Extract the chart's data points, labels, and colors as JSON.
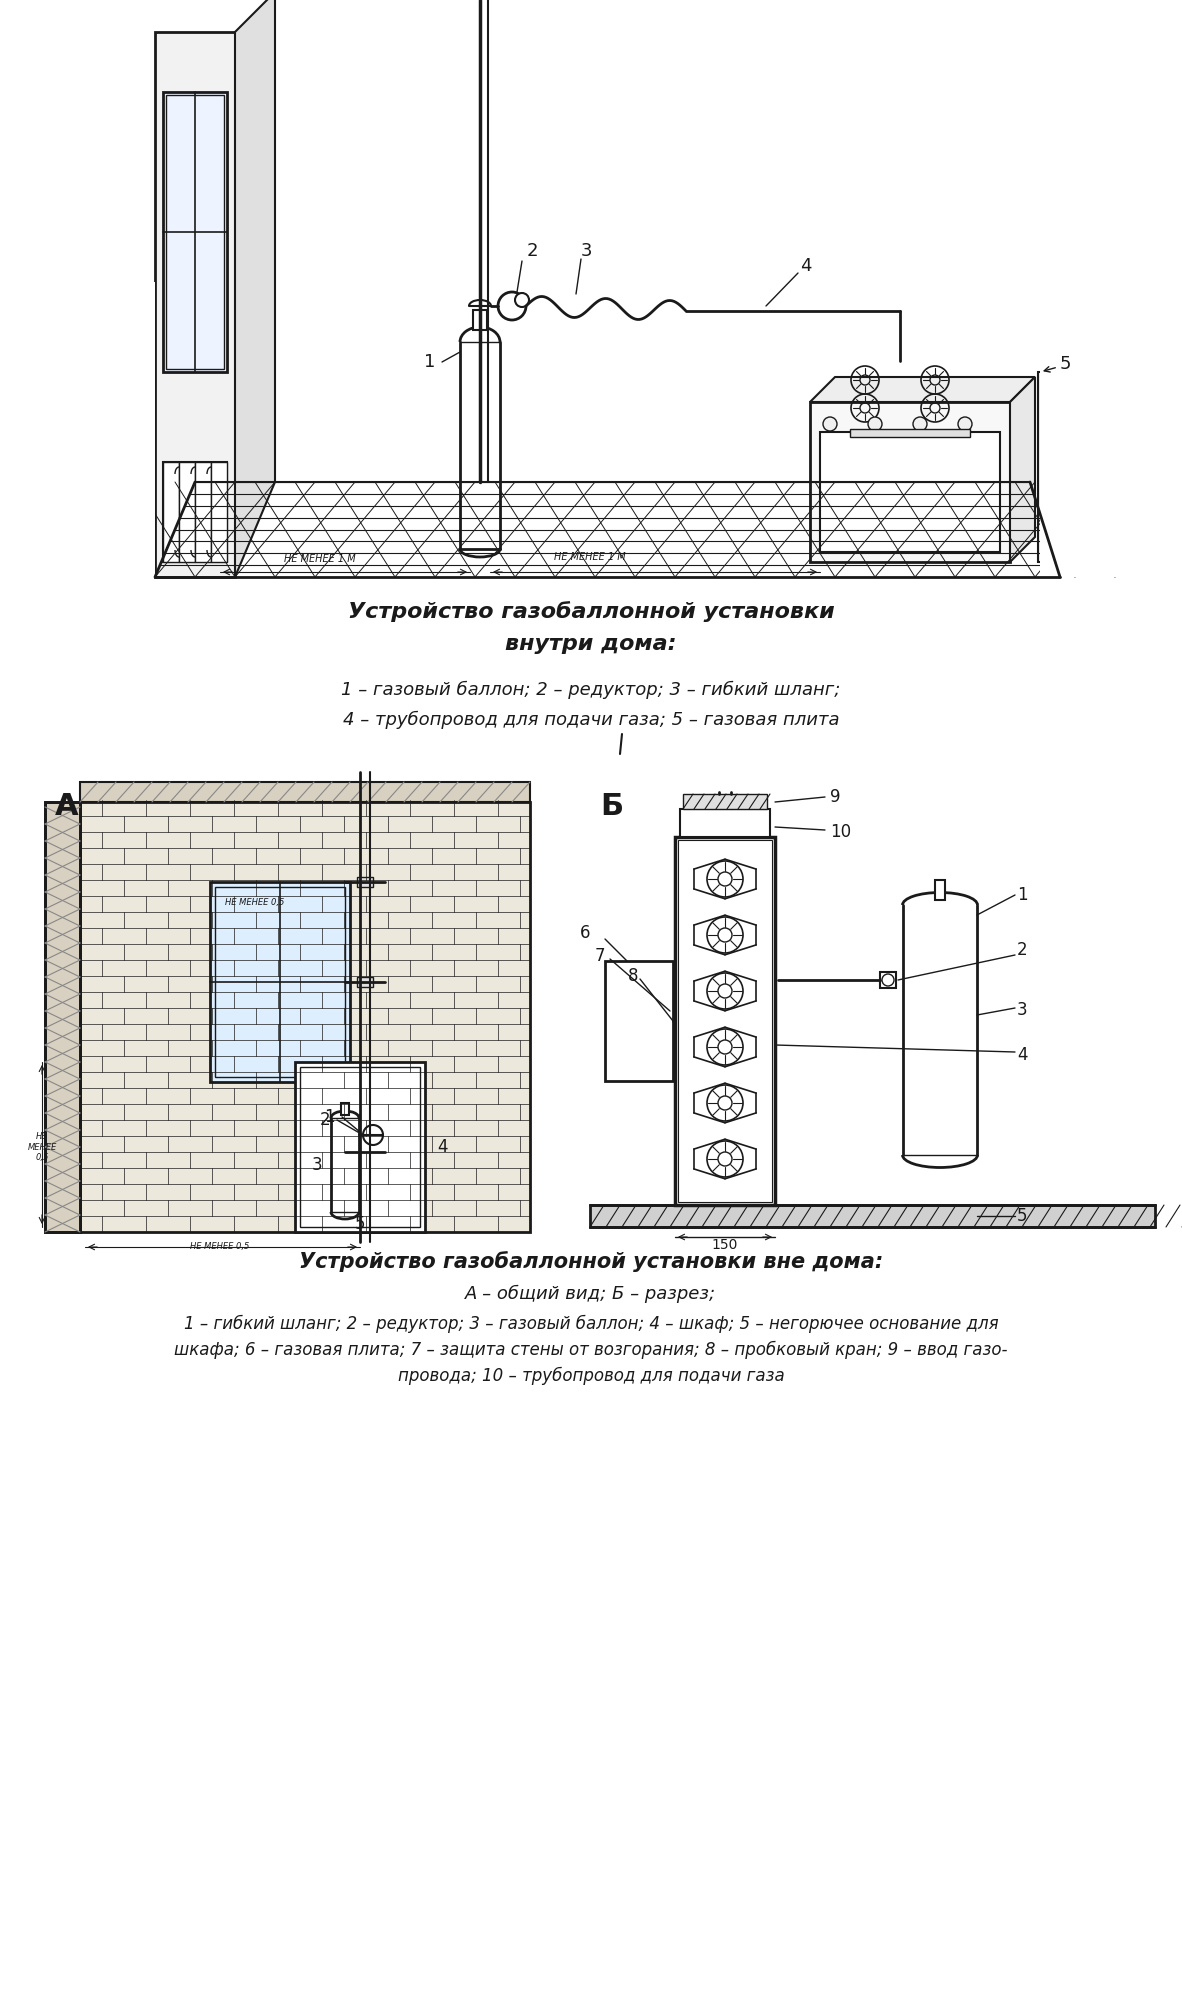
{
  "bg_color": "#ffffff",
  "line_color": "#1a1a1a",
  "title1_line1": "Устройство газобаллонной установки",
  "title1_line2": "внутри дома:",
  "caption1_line1": "1 – газовый баллон; 2 – редуктор; 3 – гибкий шланг;",
  "caption1_line2": "4 – трубопровод для подачи газа; 5 – газовая плита",
  "title2_line1": "Устройство газобаллонной установки вне дома:",
  "caption2_line1": "А – общий вид; Б – разрез;",
  "caption2_line2": "1 – гибкий шланг; 2 – редуктор; 3 – газовый баллон; 4 – шкаф; 5 – негорючее основание для",
  "caption2_line3": "шкафа; 6 – газовая плита; 7 – защита стены от возгорания; 8 – пробковый кран; 9 – ввод газо-",
  "caption2_line4": "провода; 10 – трубопровод для подачи газа",
  "label_A": "А",
  "label_B": "Б",
  "label_150": "150"
}
